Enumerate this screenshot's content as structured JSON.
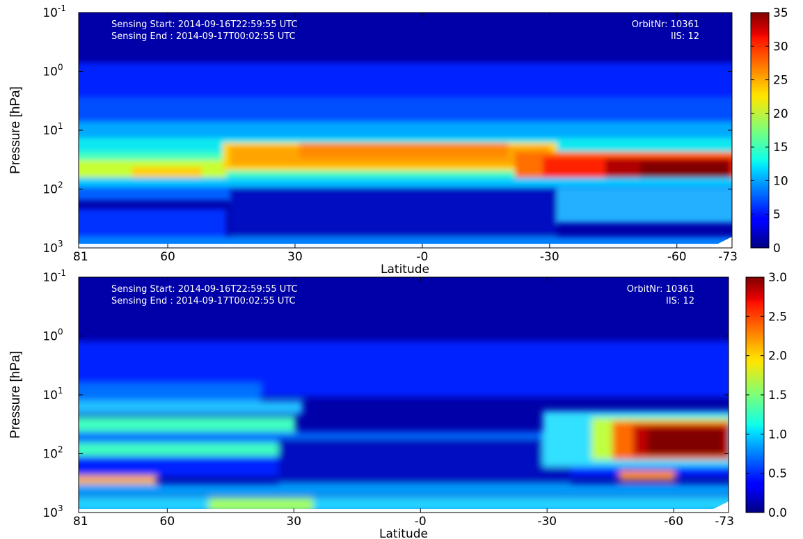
{
  "chart_data": [
    {
      "type": "heatmap",
      "title": "",
      "xlabel": "Latitude",
      "ylabel": "Pressure [hPa]",
      "x_ticks": [
        "81",
        "60",
        "30",
        "-0",
        "-30",
        "-60",
        "-73"
      ],
      "x_tick_values": [
        81,
        60,
        30,
        0,
        -30,
        -60,
        -73
      ],
      "y_scale": "log",
      "y_ticks": [
        {
          "base": "10",
          "exp": "-1",
          "value": 0.1
        },
        {
          "base": "10",
          "exp": "0",
          "value": 1
        },
        {
          "base": "10",
          "exp": "1",
          "value": 10
        },
        {
          "base": "10",
          "exp": "2",
          "value": 100
        },
        {
          "base": "10",
          "exp": "3",
          "value": 1000
        }
      ],
      "ylim": [
        1000,
        0.1
      ],
      "colormap": "jet",
      "colorbar": {
        "min": 0,
        "max": 35,
        "ticks": [
          "0",
          "5",
          "10",
          "15",
          "20",
          "25",
          "30",
          "35"
        ]
      },
      "annotations": {
        "sensing_start": "Sensing Start: 2014-09-16T22:59:55 UTC",
        "sensing_end": "Sensing End  : 2014-09-17T00:02:55 UTC",
        "orbit": "OrbitNr: 10361",
        "iis": "IIS: 12"
      },
      "field_description": [
        {
          "feature": "background",
          "value": 1
        },
        {
          "feature": "main layer 10-30 hPa, lat 50 to -20",
          "value": 25
        },
        {
          "feature": "main layer lat 81 to 55",
          "value": 19
        },
        {
          "feature": "southern maximum 30-100 hPa, lat -40 to -73",
          "value": 35
        },
        {
          "feature": "lower troposphere minimum",
          "value": 2
        }
      ]
    },
    {
      "type": "heatmap",
      "title": "",
      "xlabel": "Latitude",
      "ylabel": "Pressure [hPa]",
      "x_ticks": [
        "81",
        "60",
        "30",
        "-0",
        "-30",
        "-60",
        "-73"
      ],
      "x_tick_values": [
        81,
        60,
        30,
        0,
        -30,
        -60,
        -73
      ],
      "y_scale": "log",
      "y_ticks": [
        {
          "base": "10",
          "exp": "-1",
          "value": 0.1
        },
        {
          "base": "10",
          "exp": "0",
          "value": 1
        },
        {
          "base": "10",
          "exp": "1",
          "value": 10
        },
        {
          "base": "10",
          "exp": "2",
          "value": 100
        },
        {
          "base": "10",
          "exp": "3",
          "value": 1000
        }
      ],
      "ylim": [
        1000,
        0.1
      ],
      "colormap": "jet",
      "colorbar": {
        "min": 0.0,
        "max": 3.0,
        "ticks": [
          "0.0",
          "0.5",
          "1.0",
          "1.5",
          "2.0",
          "2.5",
          "3.0"
        ]
      },
      "annotations": {
        "sensing_start": "Sensing Start: 2014-09-16T22:59:55 UTC",
        "sensing_end": "Sensing End  : 2014-09-17T00:02:55 UTC",
        "orbit": "OrbitNr: 10361",
        "iis": "IIS: 12"
      },
      "field_description": [
        {
          "feature": "background",
          "value": 0.1
        },
        {
          "feature": "bands 30-300 hPa",
          "value": 1.1
        },
        {
          "feature": "southern maximum 40-100 hPa, lat -45 to -73",
          "value": 3.0
        },
        {
          "feature": "near-surface layer",
          "value": 1.3
        }
      ]
    }
  ]
}
